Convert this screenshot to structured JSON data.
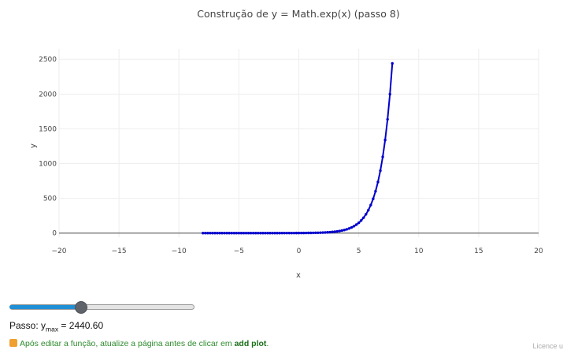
{
  "chart_data": {
    "type": "line",
    "title": "Construção de y =  Math.exp(x) (passo 8)",
    "xlabel": "x",
    "ylabel": "y",
    "xlim": [
      -20,
      20
    ],
    "ylim": [
      -60,
      2650
    ],
    "x_ticks": [
      -20,
      -15,
      -10,
      -5,
      0,
      5,
      10,
      15,
      20
    ],
    "x_tick_labels": [
      "−20",
      "−15",
      "−10",
      "−5",
      "0",
      "5",
      "10",
      "15",
      "20"
    ],
    "y_ticks": [
      0,
      500,
      1000,
      1500,
      2000,
      2500
    ],
    "y_tick_labels": [
      "0",
      "500",
      "1000",
      "1500",
      "2000",
      "2500"
    ],
    "grid": true,
    "series": [
      {
        "color": "#0000cc",
        "x": [
          -8.0,
          -7.8,
          -7.6,
          -7.4,
          -7.2,
          -7.0,
          -6.8,
          -6.6,
          -6.4,
          -6.2,
          -6.0,
          -5.8,
          -5.6,
          -5.4,
          -5.2,
          -5.0,
          -4.8,
          -4.6,
          -4.4,
          -4.2,
          -4.0,
          -3.8,
          -3.6,
          -3.4,
          -3.2,
          -3.0,
          -2.8,
          -2.6,
          -2.4,
          -2.2,
          -2.0,
          -1.8,
          -1.6,
          -1.4,
          -1.2,
          -1.0,
          -0.8,
          -0.6,
          -0.4,
          -0.2,
          0.0,
          0.2,
          0.4,
          0.6,
          0.8,
          1.0,
          1.2,
          1.4,
          1.6,
          1.8,
          2.0,
          2.2,
          2.4,
          2.6,
          2.8,
          3.0,
          3.2,
          3.4,
          3.6,
          3.8,
          4.0,
          4.2,
          4.4,
          4.6,
          4.8,
          5.0,
          5.2,
          5.4,
          5.6,
          5.8,
          6.0,
          6.2,
          6.4,
          6.6,
          6.8,
          7.0,
          7.2,
          7.4,
          7.6,
          7.8
        ],
        "y": [
          0.0,
          0.0,
          0.0,
          0.0,
          0.0,
          0.0,
          0.0,
          0.0,
          0.0,
          0.0,
          0.0,
          0.0,
          0.0,
          0.0,
          0.01,
          0.01,
          0.01,
          0.01,
          0.01,
          0.01,
          0.02,
          0.02,
          0.03,
          0.03,
          0.04,
          0.05,
          0.06,
          0.07,
          0.09,
          0.11,
          0.14,
          0.17,
          0.2,
          0.25,
          0.3,
          0.37,
          0.45,
          0.55,
          0.67,
          0.82,
          1.0,
          1.22,
          1.49,
          1.82,
          2.23,
          2.72,
          3.32,
          4.06,
          4.95,
          6.05,
          7.39,
          9.03,
          11.02,
          13.46,
          16.44,
          20.09,
          24.53,
          29.96,
          36.6,
          44.7,
          54.6,
          66.69,
          81.45,
          99.48,
          121.51,
          148.41,
          181.27,
          221.41,
          270.43,
          330.3,
          403.43,
          492.75,
          601.85,
          735.1,
          897.85,
          1096.63,
          1339.43,
          1635.98,
          1998.2,
          2440.6
        ]
      }
    ]
  },
  "controls": {
    "slider_value": 0.38,
    "passo_prefix": "Passo: y",
    "passo_sub": "max",
    "passo_value": " = 2440.60"
  },
  "hint": {
    "text": "Após editar a função, atualize a página antes de clicar em ",
    "bold": "add plot",
    "end": "."
  },
  "footer": {
    "licence": "Licence u"
  }
}
